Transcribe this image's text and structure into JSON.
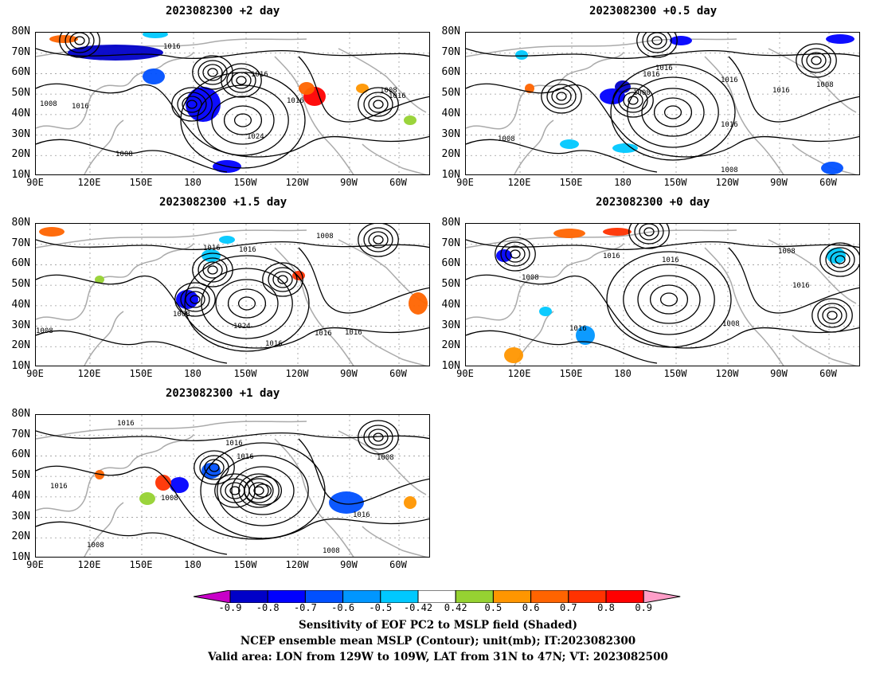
{
  "panels": [
    {
      "id": "p2",
      "title": "2023082300 +2 day"
    },
    {
      "id": "p05",
      "title": "2023082300 +0.5 day"
    },
    {
      "id": "p15",
      "title": "2023082300 +1.5 day"
    },
    {
      "id": "p0",
      "title": "2023082300 +0 day"
    },
    {
      "id": "p1",
      "title": "2023082300 +1 day"
    }
  ],
  "axes": {
    "lat_labels": [
      "80N",
      "70N",
      "60N",
      "50N",
      "40N",
      "30N",
      "20N",
      "10N"
    ],
    "lon_labels": [
      "90E",
      "120E",
      "150E",
      "180",
      "150W",
      "120W",
      "90W",
      "60W"
    ],
    "lat_range": [
      10,
      80
    ],
    "lon_range_east": [
      90,
      330
    ]
  },
  "contour_labels": {
    "p2": [
      "1016",
      "1016",
      "1016",
      "1008",
      "1016",
      "1008",
      "1016",
      "1024",
      "1008"
    ],
    "p05": [
      "1016",
      "1016",
      "1008",
      "1016",
      "1016",
      "1008",
      "1016",
      "1008",
      "1008"
    ],
    "p15": [
      "1016",
      "1016",
      "1008",
      "1008",
      "1024",
      "1008",
      "1016",
      "1016",
      "1016"
    ],
    "p0": [
      "1016",
      "1016",
      "1008",
      "1008",
      "1016",
      "1016",
      "1008"
    ],
    "p1": [
      "1016",
      "1016",
      "1016",
      "1008",
      "1016",
      "1008",
      "1016",
      "1008",
      "1008"
    ]
  },
  "colorbar": {
    "ticks": [
      "-0.9",
      "-0.8",
      "-0.7",
      "-0.6",
      "-0.5",
      "-0.42",
      "0.42",
      "0.5",
      "0.6",
      "0.7",
      "0.8",
      "0.9"
    ],
    "colors": [
      "#c800c8",
      "#0000c8",
      "#0000ff",
      "#0050ff",
      "#0096ff",
      "#00c8ff",
      "#ffffff",
      "#96d232",
      "#ff9600",
      "#ff6400",
      "#ff3200",
      "#ff0000",
      "#ff9ec8"
    ]
  },
  "captions": [
    "Sensitivity of EOF PC2 to MSLP field (Shaded)",
    "NCEP ensemble mean MSLP (Contour); unit(mb); IT:2023082300",
    "Valid area: LON from 129W to 109W, LAT from 31N to 47N; VT: 2023082500"
  ]
}
